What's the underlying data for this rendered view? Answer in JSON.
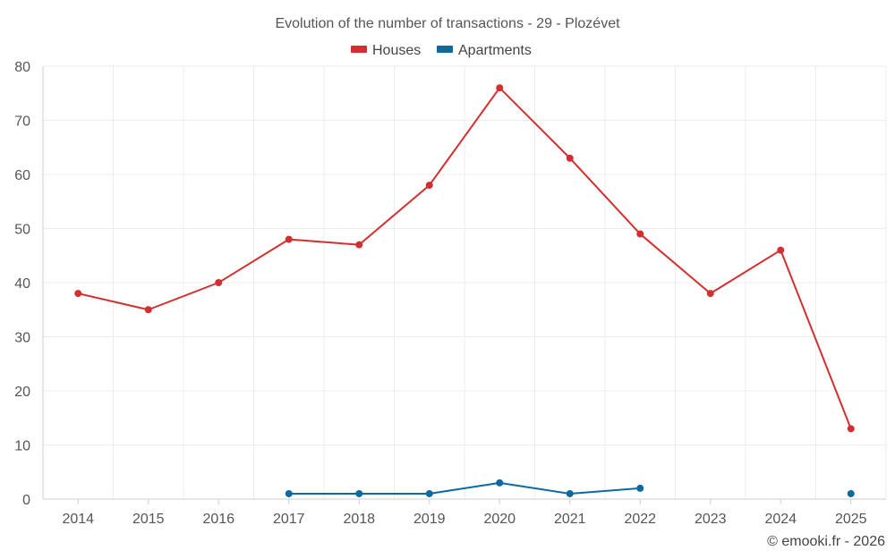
{
  "chart_data": {
    "type": "line",
    "title": "Evolution of the number of transactions - 29 - Plozévet",
    "categories": [
      "2014",
      "2015",
      "2016",
      "2017",
      "2018",
      "2019",
      "2020",
      "2021",
      "2022",
      "2023",
      "2024",
      "2025"
    ],
    "series": [
      {
        "name": "Houses",
        "color": "#d32f2f",
        "values": [
          38,
          35,
          40,
          48,
          47,
          58,
          76,
          63,
          49,
          38,
          46,
          13
        ]
      },
      {
        "name": "Apartments",
        "color": "#0d6aa0",
        "values": [
          null,
          null,
          null,
          1,
          1,
          1,
          3,
          1,
          2,
          null,
          null,
          1
        ]
      }
    ],
    "ylim": [
      0,
      80
    ],
    "yticks": [
      0,
      10,
      20,
      30,
      40,
      50,
      60,
      70,
      80
    ],
    "grid": true,
    "legend": "top-center",
    "xlabel": "",
    "ylabel": ""
  },
  "credit": "© emooki.fr - 2026"
}
